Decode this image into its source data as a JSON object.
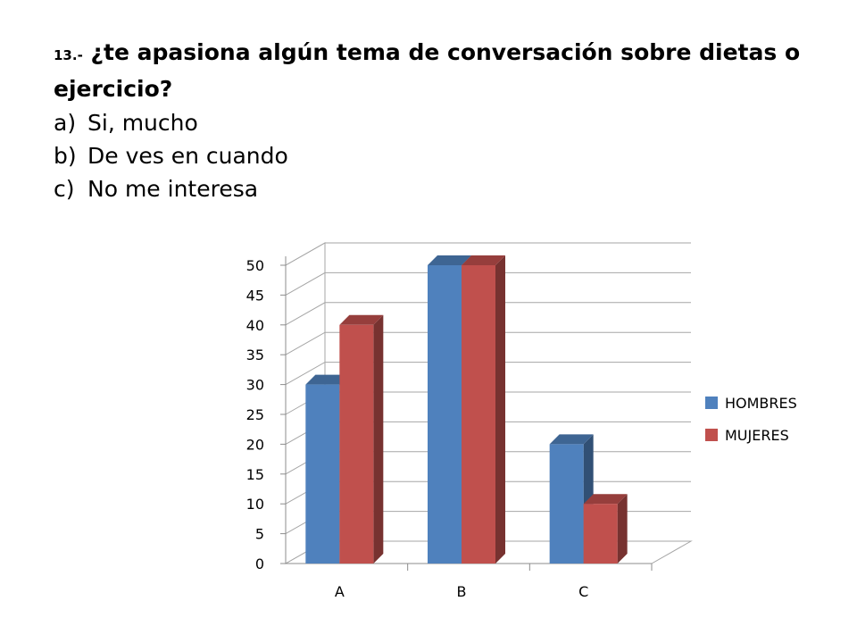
{
  "slide": {
    "question_number": "13.-",
    "question_text": "¿te apasiona algún tema de conversación sobre dietas o ejercicio?",
    "options": [
      {
        "letter": "a)",
        "text": "Si, mucho"
      },
      {
        "letter": "b)",
        "text": "De ves en cuando"
      },
      {
        "letter": "c)",
        "text": "No me interesa"
      }
    ]
  },
  "chart_data": {
    "type": "bar",
    "style": "3d-clustered-column",
    "categories": [
      "A",
      "B",
      "C"
    ],
    "series": [
      {
        "name": "HOMBRES",
        "values": [
          30,
          50,
          20
        ],
        "color": "#4F81BD"
      },
      {
        "name": "MUJERES",
        "values": [
          40,
          50,
          10
        ],
        "color": "#C0504D"
      }
    ],
    "yticks": [
      "0",
      "5",
      "10",
      "15",
      "20",
      "25",
      "30",
      "35",
      "40",
      "45",
      "50"
    ],
    "ylim": [
      0,
      50
    ],
    "grid": true,
    "legend_position": "right"
  }
}
